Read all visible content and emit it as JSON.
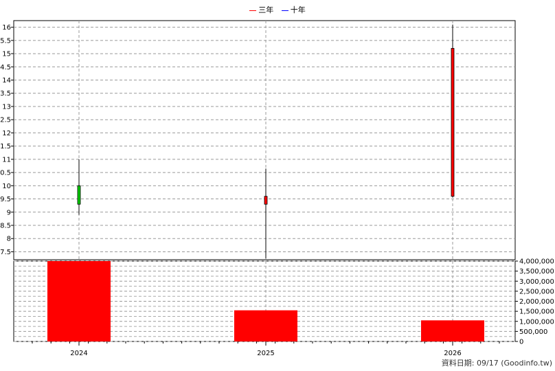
{
  "legend": {
    "items": [
      {
        "label": "三年",
        "color": "#ff0000"
      },
      {
        "label": "十年",
        "color": "#0000ff"
      }
    ]
  },
  "footer": "資料日期: 09/17  (Goodinfo.tw)",
  "chart_data": [
    {
      "type": "candlestick",
      "categories": [
        "2024",
        "2025",
        "2026"
      ],
      "y_ticks": [
        "7.5",
        "8",
        "8.5",
        "9",
        "9.5",
        "10",
        "10.5",
        "11",
        "11.5",
        "12",
        "12.5",
        "13",
        "13.5",
        "14",
        "14.5",
        "15",
        "15.5",
        "16"
      ],
      "ylim": [
        7.2,
        16.25
      ],
      "grid": true,
      "candles": [
        {
          "x": "2024",
          "open": 9.3,
          "close": 10.0,
          "high": 11.0,
          "low": 8.9,
          "color": "#00cc00"
        },
        {
          "x": "2025",
          "open": 9.6,
          "close": 9.3,
          "high": 10.65,
          "low": 7.25,
          "color": "#ff0000"
        },
        {
          "x": "2026",
          "open": 9.6,
          "close": 15.2,
          "high": 16.1,
          "low": 9.55,
          "color": "#ff0000"
        }
      ]
    },
    {
      "type": "bar",
      "categories": [
        "2024",
        "2025",
        "2026"
      ],
      "values": [
        4050000,
        1550000,
        1050000
      ],
      "y_ticks": [
        "0",
        "500,000",
        "1,000,000",
        "1,500,000",
        "2,000,000",
        "2,500,000",
        "3,000,000",
        "3,500,000",
        "4,000,000"
      ],
      "ylim": [
        0,
        4000000
      ],
      "color": "#ff0000",
      "grid": true
    }
  ]
}
